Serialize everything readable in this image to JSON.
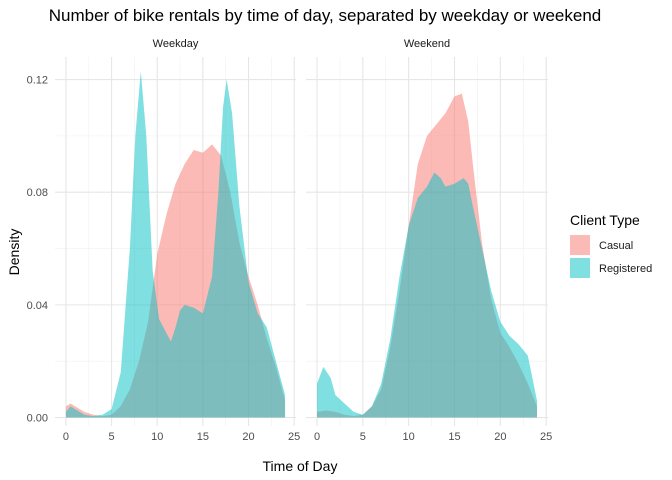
{
  "chart_data": {
    "type": "area",
    "title": "Number of bike rentals by time of day, separated by weekday or weekend",
    "xlabel": "Time of Day",
    "ylabel": "Density",
    "xlim": [
      -1.2,
      25.2
    ],
    "ylim": [
      -0.003,
      0.128
    ],
    "x_ticks": [
      0,
      5,
      10,
      15,
      20,
      25
    ],
    "y_ticks": [
      0.0,
      0.04,
      0.08,
      0.12
    ],
    "y_tick_labels": [
      "0.00",
      "0.04",
      "0.08",
      "0.12"
    ],
    "grid": true,
    "legend": {
      "title": "Client Type",
      "position": "right",
      "entries": [
        {
          "name": "Casual",
          "color": "#F8766D"
        },
        {
          "name": "Registered",
          "color": "#00BFC4"
        }
      ]
    },
    "panels": [
      {
        "label": "Weekday",
        "series": [
          {
            "name": "Casual",
            "color": "#F8766D",
            "points": [
              [
                0,
                0.004
              ],
              [
                0.5,
                0.005
              ],
              [
                1,
                0.004
              ],
              [
                2,
                0.002
              ],
              [
                3,
                0.001
              ],
              [
                4,
                0.0005
              ],
              [
                5,
                0.001
              ],
              [
                6,
                0.004
              ],
              [
                7,
                0.01
              ],
              [
                8,
                0.02
              ],
              [
                9,
                0.034
              ],
              [
                10,
                0.058
              ],
              [
                11,
                0.072
              ],
              [
                12,
                0.083
              ],
              [
                13,
                0.09
              ],
              [
                14,
                0.095
              ],
              [
                15,
                0.094
              ],
              [
                16,
                0.097
              ],
              [
                17,
                0.093
              ],
              [
                18,
                0.08
              ],
              [
                19,
                0.062
              ],
              [
                20,
                0.05
              ],
              [
                21,
                0.04
              ],
              [
                22,
                0.028
              ],
              [
                23,
                0.018
              ],
              [
                24,
                0.006
              ]
            ]
          },
          {
            "name": "Registered",
            "color": "#00BFC4",
            "points": [
              [
                0,
                0.002
              ],
              [
                0.5,
                0.004
              ],
              [
                1,
                0.003
              ],
              [
                2,
                0.001
              ],
              [
                3,
                0.0005
              ],
              [
                4,
                0.001
              ],
              [
                5,
                0.003
              ],
              [
                6,
                0.016
              ],
              [
                7,
                0.06
              ],
              [
                7.6,
                0.1
              ],
              [
                8.2,
                0.123
              ],
              [
                8.8,
                0.1
              ],
              [
                9.5,
                0.052
              ],
              [
                10.2,
                0.035
              ],
              [
                11,
                0.03
              ],
              [
                11.5,
                0.027
              ],
              [
                12,
                0.032
              ],
              [
                12.5,
                0.038
              ],
              [
                13,
                0.04
              ],
              [
                14,
                0.039
              ],
              [
                15,
                0.037
              ],
              [
                16,
                0.05
              ],
              [
                16.7,
                0.08
              ],
              [
                17.2,
                0.11
              ],
              [
                17.6,
                0.12
              ],
              [
                18.2,
                0.108
              ],
              [
                19,
                0.075
              ],
              [
                20,
                0.048
              ],
              [
                21,
                0.037
              ],
              [
                22,
                0.032
              ],
              [
                23,
                0.02
              ],
              [
                24,
                0.008
              ]
            ]
          }
        ]
      },
      {
        "label": "Weekend",
        "series": [
          {
            "name": "Casual",
            "color": "#F8766D",
            "points": [
              [
                0,
                0.002
              ],
              [
                1,
                0.0025
              ],
              [
                2,
                0.002
              ],
              [
                3,
                0.001
              ],
              [
                4,
                0.0005
              ],
              [
                5,
                0.001
              ],
              [
                6,
                0.004
              ],
              [
                7,
                0.01
              ],
              [
                8,
                0.025
              ],
              [
                9,
                0.045
              ],
              [
                10,
                0.068
              ],
              [
                11,
                0.09
              ],
              [
                12,
                0.1
              ],
              [
                13,
                0.104
              ],
              [
                14,
                0.108
              ],
              [
                15,
                0.114
              ],
              [
                15.8,
                0.115
              ],
              [
                16.5,
                0.105
              ],
              [
                17,
                0.09
              ],
              [
                18,
                0.062
              ],
              [
                19,
                0.042
              ],
              [
                20,
                0.03
              ],
              [
                21,
                0.025
              ],
              [
                22,
                0.019
              ],
              [
                23,
                0.012
              ],
              [
                24,
                0.004
              ]
            ]
          },
          {
            "name": "Registered",
            "color": "#00BFC4",
            "points": [
              [
                0,
                0.012
              ],
              [
                0.7,
                0.018
              ],
              [
                1.5,
                0.014
              ],
              [
                2,
                0.008
              ],
              [
                3,
                0.005
              ],
              [
                4,
                0.002
              ],
              [
                5,
                0.001
              ],
              [
                6,
                0.004
              ],
              [
                7,
                0.012
              ],
              [
                8,
                0.028
              ],
              [
                9,
                0.05
              ],
              [
                10,
                0.068
              ],
              [
                11,
                0.078
              ],
              [
                12,
                0.082
              ],
              [
                12.8,
                0.087
              ],
              [
                13.5,
                0.085
              ],
              [
                14,
                0.082
              ],
              [
                15,
                0.083
              ],
              [
                16,
                0.085
              ],
              [
                16.5,
                0.083
              ],
              [
                17,
                0.075
              ],
              [
                18,
                0.06
              ],
              [
                19,
                0.045
              ],
              [
                20,
                0.034
              ],
              [
                21,
                0.029
              ],
              [
                22,
                0.026
              ],
              [
                23,
                0.022
              ],
              [
                24,
                0.006
              ]
            ]
          }
        ]
      }
    ]
  }
}
